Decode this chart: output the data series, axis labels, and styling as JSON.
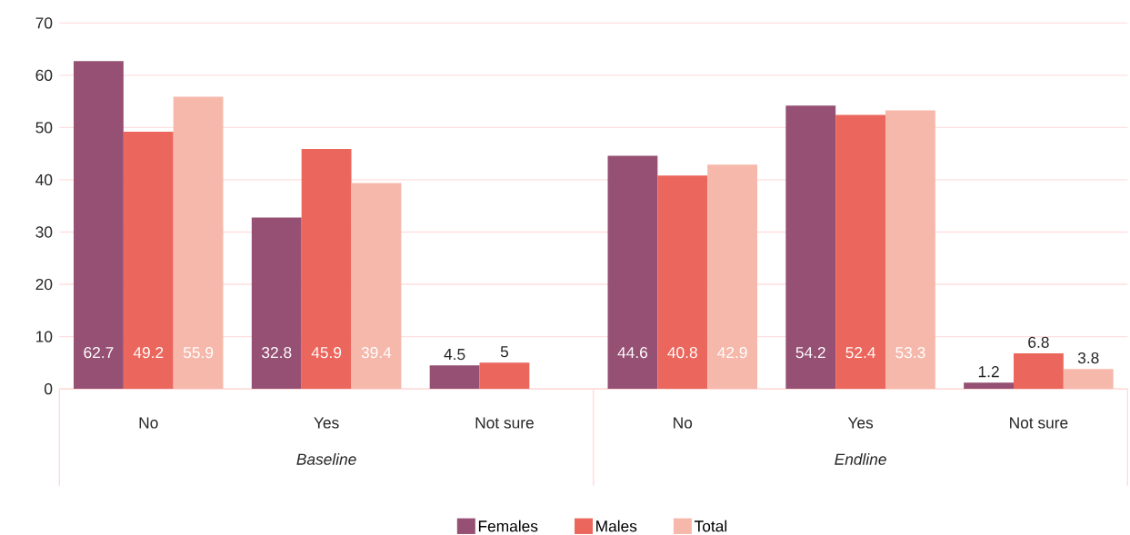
{
  "chart_data": {
    "type": "bar",
    "categories": [
      "No",
      "Yes",
      "Not sure",
      "No",
      "Yes",
      "Not sure"
    ],
    "series": [
      {
        "name": "Females",
        "color": "#955073",
        "values": [
          62.7,
          32.8,
          4.5,
          44.6,
          54.2,
          1.2
        ]
      },
      {
        "name": "Males",
        "color": "#eb665c",
        "values": [
          49.2,
          45.9,
          5,
          40.8,
          52.4,
          6.8
        ]
      },
      {
        "name": "Total",
        "color": "#f6b8aa",
        "values": [
          55.9,
          39.4,
          null,
          42.9,
          53.3,
          3.8
        ]
      }
    ],
    "annotations": [
      "Baseline",
      "Endline"
    ],
    "ylim": [
      0,
      70
    ],
    "yticks": [
      0,
      10,
      20,
      30,
      40,
      50,
      60,
      70
    ],
    "grid": "y",
    "legend": "bottom",
    "data_labels": true
  }
}
